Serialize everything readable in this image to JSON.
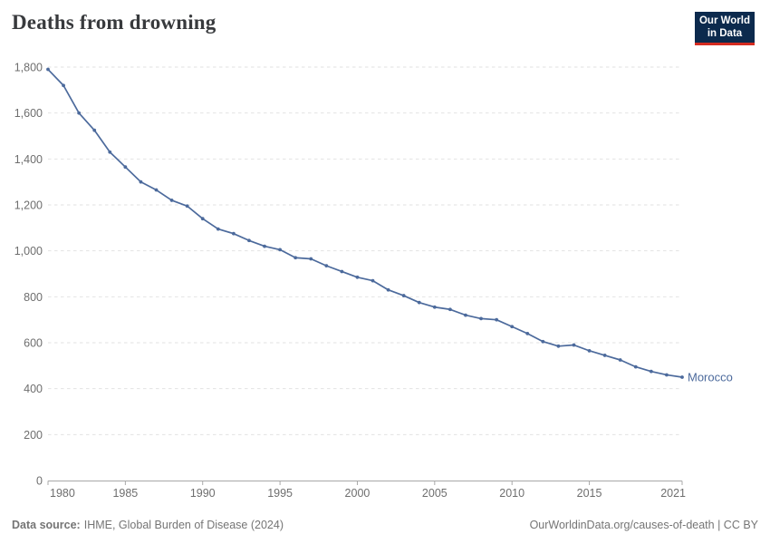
{
  "header": {
    "title": "Deaths from drowning",
    "logo": {
      "line1": "Our World",
      "line2": "in Data"
    }
  },
  "footer": {
    "source_label": "Data source:",
    "source_text": "IHME, Global Burden of Disease (2024)",
    "credit": "OurWorldinData.org/causes-of-death | CC BY"
  },
  "colors": {
    "line": "#4c6a9c",
    "grid": "#e2e2e2",
    "axis": "#a8a8a8",
    "tick_label": "#6e6e6e",
    "title": "#383a3d",
    "logo_bg": "#0c2a4d",
    "logo_accent": "#d42b20",
    "footer_text": "#757575",
    "end_label": "#4c6a9c"
  },
  "chart_data": {
    "type": "line",
    "title": "Deaths from drowning",
    "xlabel": "",
    "ylabel": "",
    "xlim": [
      1980,
      2021
    ],
    "ylim": [
      0,
      1800
    ],
    "xticks": [
      1980,
      1985,
      1990,
      1995,
      2000,
      2005,
      2010,
      2015,
      2021
    ],
    "yticks": [
      0,
      200,
      400,
      600,
      800,
      1000,
      1200,
      1400,
      1600,
      1800
    ],
    "grid": "horizontal-dashed",
    "legend_position": "end-of-line-label",
    "x": [
      1980,
      1981,
      1982,
      1983,
      1984,
      1985,
      1986,
      1987,
      1988,
      1989,
      1990,
      1991,
      1992,
      1993,
      1994,
      1995,
      1996,
      1997,
      1998,
      1999,
      2000,
      2001,
      2002,
      2003,
      2004,
      2005,
      2006,
      2007,
      2008,
      2009,
      2010,
      2011,
      2012,
      2013,
      2014,
      2015,
      2016,
      2017,
      2018,
      2019,
      2020,
      2021
    ],
    "series": [
      {
        "name": "Morocco",
        "color": "#4c6a9c",
        "values": [
          1790,
          1720,
          1600,
          1525,
          1430,
          1365,
          1300,
          1265,
          1220,
          1195,
          1140,
          1095,
          1075,
          1045,
          1020,
          1005,
          970,
          965,
          935,
          910,
          885,
          870,
          830,
          805,
          775,
          755,
          745,
          720,
          705,
          700,
          670,
          640,
          605,
          585,
          590,
          565,
          545,
          525,
          495,
          475,
          460,
          450
        ]
      }
    ]
  }
}
